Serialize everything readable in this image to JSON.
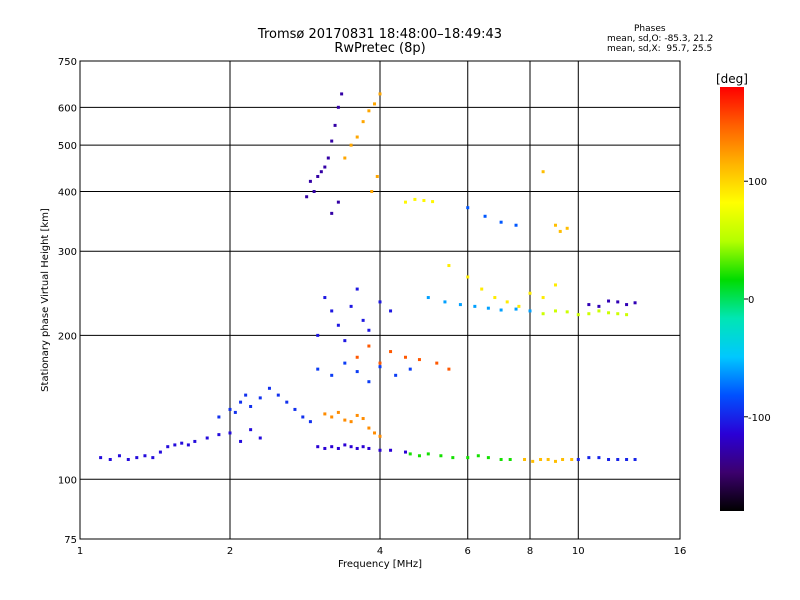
{
  "header": {
    "title_line1": "Tromsø 20170831 18:48:00–18:49:43",
    "title_line2": "RwPretec (8p)",
    "stats_heading": "Phases",
    "stats_o": "mean, sd,O: -85.3, 21.2",
    "stats_x": "mean, sd,X:  95.7, 25.5"
  },
  "chart_data": {
    "type": "scatter",
    "title": "Tromsø 20170831 18:48:00–18:49:43",
    "subtitle": "RwPretec (8p)",
    "xlabel": "Frequency [MHz]",
    "ylabel": "Stationary phase Virtual Height [km]",
    "x_scale": "log",
    "y_scale": "log",
    "xlim": [
      1,
      16
    ],
    "ylim": [
      75,
      750
    ],
    "x_ticks": [
      1,
      2,
      4,
      6,
      8,
      10,
      16
    ],
    "x_tick_labels": [
      "1",
      "2",
      "4",
      "6",
      "8",
      "10",
      "16"
    ],
    "y_ticks": [
      75,
      100,
      200,
      300,
      400,
      500,
      600,
      750
    ],
    "y_tick_labels": [
      "75",
      "100",
      "200",
      "300",
      "400",
      "500",
      "600",
      "750"
    ],
    "grid": true,
    "colorbar": {
      "label": "[deg]",
      "range": [
        -180,
        180
      ],
      "ticks": [
        100,
        0,
        -100
      ],
      "tick_labels": [
        "100",
        "0",
        "-100"
      ],
      "colors": [
        "#000000",
        "#3c006e",
        "#2a00d6",
        "#0050ff",
        "#00c8ff",
        "#00e6b4",
        "#00dc00",
        "#b4ff00",
        "#ffff00",
        "#ffb400",
        "#ff6000",
        "#ff0000"
      ]
    },
    "series": [
      {
        "phase": -110,
        "points": [
          [
            1.1,
            111
          ],
          [
            1.15,
            110
          ],
          [
            1.2,
            112
          ],
          [
            1.25,
            110
          ],
          [
            1.3,
            111
          ],
          [
            1.35,
            112
          ],
          [
            1.4,
            111
          ],
          [
            1.45,
            114
          ],
          [
            1.5,
            117
          ],
          [
            1.55,
            118
          ],
          [
            1.6,
            119
          ],
          [
            1.65,
            118
          ],
          [
            1.7,
            120
          ],
          [
            1.8,
            122
          ],
          [
            1.9,
            124
          ],
          [
            2.0,
            125
          ],
          [
            2.1,
            120
          ],
          [
            2.2,
            127
          ],
          [
            2.3,
            122
          ]
        ]
      },
      {
        "phase": -95,
        "points": [
          [
            1.9,
            135
          ],
          [
            2.0,
            140
          ],
          [
            2.05,
            138
          ],
          [
            2.1,
            145
          ],
          [
            2.15,
            150
          ],
          [
            2.2,
            142
          ],
          [
            2.3,
            148
          ],
          [
            2.4,
            155
          ],
          [
            2.5,
            150
          ],
          [
            2.6,
            145
          ],
          [
            2.7,
            140
          ],
          [
            2.8,
            135
          ],
          [
            2.9,
            132
          ]
        ]
      },
      {
        "phase": -115,
        "points": [
          [
            3.0,
            117
          ],
          [
            3.1,
            116
          ],
          [
            3.2,
            117
          ],
          [
            3.3,
            116
          ],
          [
            3.4,
            118
          ],
          [
            3.5,
            117
          ],
          [
            3.6,
            116
          ],
          [
            3.7,
            117
          ],
          [
            3.8,
            116
          ],
          [
            4.0,
            115
          ],
          [
            4.2,
            115
          ],
          [
            4.5,
            114
          ]
        ]
      },
      {
        "phase": 20,
        "points": [
          [
            4.6,
            113
          ],
          [
            4.8,
            112
          ],
          [
            5.0,
            113
          ],
          [
            5.3,
            112
          ],
          [
            5.6,
            111
          ],
          [
            6.0,
            111
          ],
          [
            6.3,
            112
          ],
          [
            6.6,
            111
          ],
          [
            7.0,
            110
          ],
          [
            7.3,
            110
          ]
        ]
      },
      {
        "phase": 110,
        "points": [
          [
            7.8,
            110
          ],
          [
            8.1,
            109
          ],
          [
            8.4,
            110
          ],
          [
            8.7,
            110
          ],
          [
            9.0,
            109
          ],
          [
            9.3,
            110
          ],
          [
            9.7,
            110
          ]
        ]
      },
      {
        "phase": -100,
        "points": [
          [
            10.0,
            110
          ],
          [
            10.5,
            111
          ],
          [
            11.0,
            111
          ],
          [
            11.5,
            110
          ],
          [
            12.0,
            110
          ],
          [
            12.5,
            110
          ],
          [
            13.0,
            110
          ]
        ]
      },
      {
        "phase": 130,
        "points": [
          [
            3.1,
            137
          ],
          [
            3.2,
            135
          ],
          [
            3.3,
            138
          ],
          [
            3.4,
            133
          ],
          [
            3.5,
            132
          ],
          [
            3.6,
            136
          ],
          [
            3.7,
            134
          ],
          [
            3.8,
            128
          ],
          [
            3.9,
            125
          ],
          [
            4.0,
            123
          ]
        ]
      },
      {
        "phase": -130,
        "points": [
          [
            2.85,
            390
          ],
          [
            2.9,
            420
          ],
          [
            2.95,
            400
          ],
          [
            3.0,
            430
          ],
          [
            3.05,
            440
          ],
          [
            3.1,
            450
          ],
          [
            3.15,
            470
          ],
          [
            3.2,
            510
          ],
          [
            3.25,
            550
          ],
          [
            3.3,
            600
          ],
          [
            3.35,
            640
          ],
          [
            3.3,
            380
          ],
          [
            3.2,
            360
          ]
        ]
      },
      {
        "phase": 120,
        "points": [
          [
            3.4,
            470
          ],
          [
            3.5,
            500
          ],
          [
            3.6,
            520
          ],
          [
            3.7,
            560
          ],
          [
            3.8,
            590
          ],
          [
            3.9,
            610
          ],
          [
            4.0,
            640
          ],
          [
            3.95,
            430
          ],
          [
            3.85,
            400
          ]
        ]
      },
      {
        "phase": -105,
        "points": [
          [
            3.0,
            200
          ],
          [
            3.1,
            240
          ],
          [
            3.2,
            225
          ],
          [
            3.3,
            210
          ],
          [
            3.4,
            195
          ],
          [
            3.5,
            230
          ],
          [
            3.6,
            250
          ],
          [
            3.7,
            215
          ],
          [
            3.8,
            205
          ],
          [
            4.0,
            235
          ],
          [
            4.2,
            225
          ]
        ]
      },
      {
        "phase": -90,
        "points": [
          [
            3.0,
            170
          ],
          [
            3.2,
            165
          ],
          [
            3.4,
            175
          ],
          [
            3.6,
            168
          ],
          [
            3.8,
            160
          ],
          [
            4.0,
            172
          ],
          [
            4.3,
            165
          ],
          [
            4.6,
            170
          ]
        ]
      },
      {
        "phase": 150,
        "points": [
          [
            3.6,
            180
          ],
          [
            3.8,
            190
          ],
          [
            4.0,
            175
          ],
          [
            4.2,
            185
          ],
          [
            4.5,
            180
          ],
          [
            4.8,
            178
          ],
          [
            5.2,
            175
          ],
          [
            5.5,
            170
          ]
        ]
      },
      {
        "phase": 90,
        "points": [
          [
            5.5,
            280
          ],
          [
            6.0,
            265
          ],
          [
            6.4,
            250
          ],
          [
            6.8,
            240
          ],
          [
            7.2,
            235
          ],
          [
            7.6,
            230
          ],
          [
            8.0,
            245
          ],
          [
            8.5,
            240
          ],
          [
            9.0,
            255
          ]
        ]
      },
      {
        "phase": -60,
        "points": [
          [
            5.0,
            240
          ],
          [
            5.4,
            235
          ],
          [
            5.8,
            232
          ],
          [
            6.2,
            230
          ],
          [
            6.6,
            228
          ],
          [
            7.0,
            226
          ],
          [
            7.5,
            227
          ],
          [
            8.0,
            225
          ]
        ]
      },
      {
        "phase": 60,
        "points": [
          [
            8.5,
            222
          ],
          [
            9.0,
            225
          ],
          [
            9.5,
            224
          ],
          [
            10.0,
            221
          ],
          [
            10.5,
            222
          ],
          [
            11.0,
            225
          ],
          [
            11.5,
            223
          ],
          [
            12.0,
            222
          ],
          [
            12.5,
            221
          ]
        ]
      },
      {
        "phase": -125,
        "points": [
          [
            10.5,
            232
          ],
          [
            11.0,
            230
          ],
          [
            11.5,
            236
          ],
          [
            12.0,
            235
          ],
          [
            12.5,
            232
          ],
          [
            13.0,
            234
          ]
        ]
      },
      {
        "phase": 85,
        "points": [
          [
            4.5,
            380
          ],
          [
            4.7,
            385
          ],
          [
            4.9,
            383
          ],
          [
            5.1,
            381
          ]
        ]
      },
      {
        "phase": -80,
        "points": [
          [
            6.0,
            370
          ],
          [
            6.5,
            355
          ],
          [
            7.0,
            345
          ],
          [
            7.5,
            340
          ]
        ]
      },
      {
        "phase": 110,
        "points": [
          [
            8.5,
            440
          ],
          [
            9.0,
            340
          ],
          [
            9.2,
            330
          ],
          [
            9.5,
            335
          ]
        ]
      }
    ]
  }
}
